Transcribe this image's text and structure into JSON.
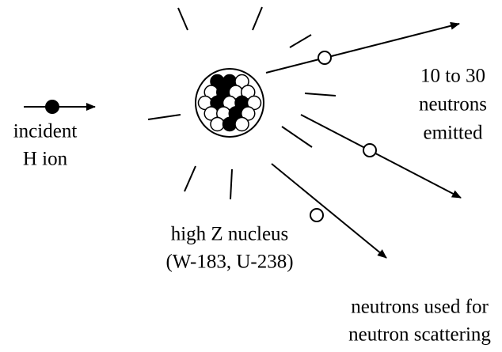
{
  "incident": {
    "line1": "incident",
    "line2": "H ion"
  },
  "nucleus": {
    "line1": "high Z nucleus",
    "line2": "(W-183, U-238)"
  },
  "emitted": {
    "line1": "10 to 30",
    "line2": "neutrons",
    "line3": "emitted"
  },
  "scattering": {
    "line1": "neutrons used for",
    "line2": "neutron scattering"
  }
}
